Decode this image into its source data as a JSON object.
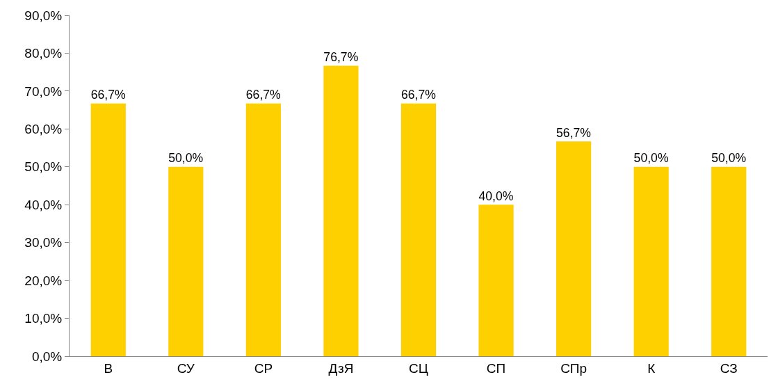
{
  "chart_data": {
    "type": "bar",
    "categories": [
      "В",
      "СУ",
      "СР",
      "ДзЯ",
      "СЦ",
      "СП",
      "СПр",
      "К",
      "СЗ"
    ],
    "values": [
      66.7,
      50.0,
      66.7,
      76.7,
      66.7,
      40.0,
      56.7,
      50.0,
      50.0
    ],
    "value_labels": [
      "66,7%",
      "50,0%",
      "66,7%",
      "76,7%",
      "66,7%",
      "40,0%",
      "56,7%",
      "50,0%",
      "50,0%"
    ],
    "color": "#ffd000",
    "ylim": [
      0,
      90
    ],
    "yticks": [
      {
        "value": 0,
        "label": "0,0%"
      },
      {
        "value": 10,
        "label": "10,0%"
      },
      {
        "value": 20,
        "label": "20,0%"
      },
      {
        "value": 30,
        "label": "30,0%"
      },
      {
        "value": 40,
        "label": "40,0%"
      },
      {
        "value": 50,
        "label": "50,0%"
      },
      {
        "value": 60,
        "label": "60,0%"
      },
      {
        "value": 70,
        "label": "70,0%"
      },
      {
        "value": 80,
        "label": "80,0%"
      },
      {
        "value": 90,
        "label": "90,0%"
      }
    ]
  }
}
